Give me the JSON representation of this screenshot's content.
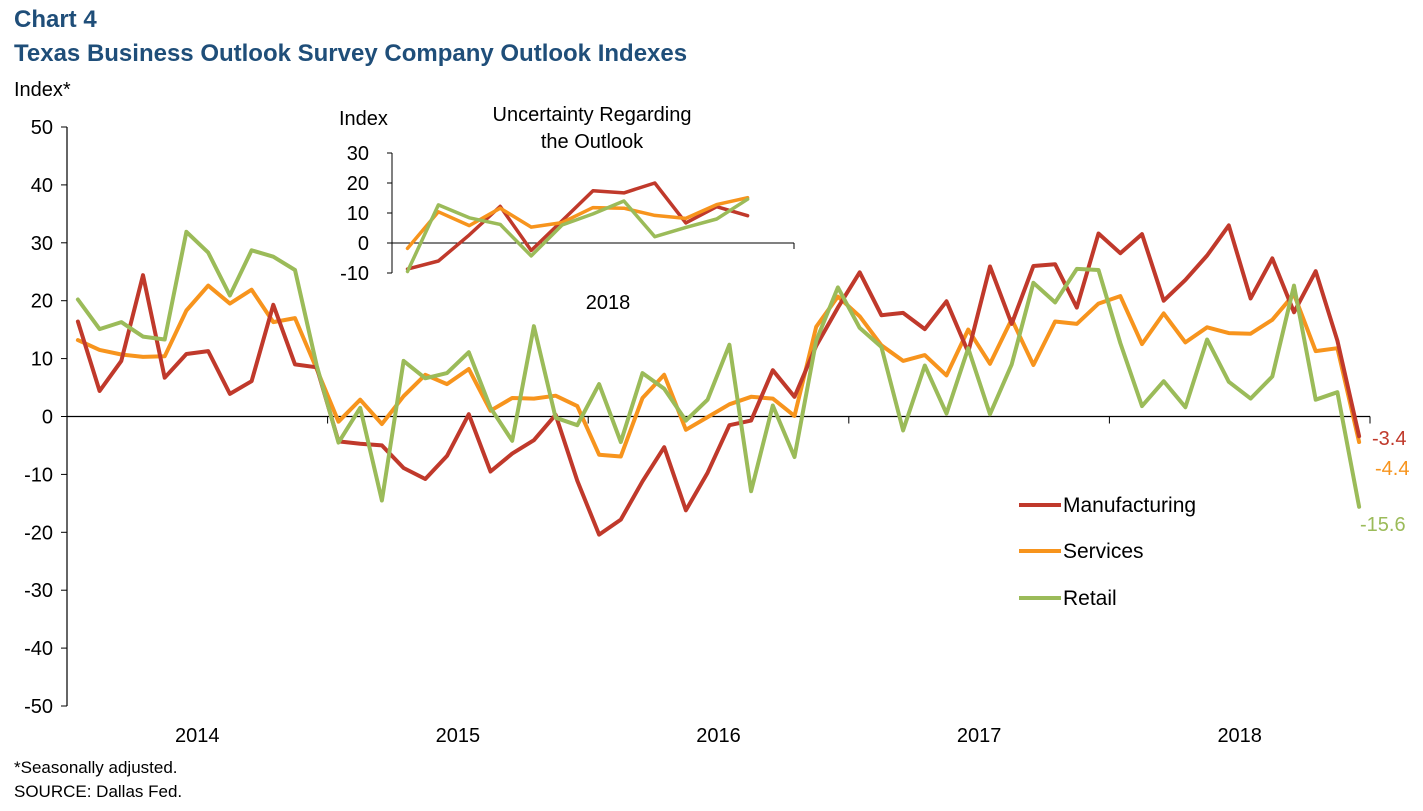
{
  "header": {
    "chart_number": "Chart 4",
    "title": "Texas Business Outlook Survey Company Outlook Indexes"
  },
  "footnotes": {
    "seasonal": "*Seasonally adjusted.",
    "source": "SOURCE: Dallas Fed."
  },
  "colors": {
    "manufacturing": "#c0392b",
    "services": "#f7941d",
    "retail": "#9bbb59",
    "axis": "#000000"
  },
  "chart_data": [
    {
      "id": "main",
      "type": "line",
      "title": "Texas Business Outlook Survey Company Outlook Indexes",
      "ylabel": "Index*",
      "ylim": [
        -50,
        50
      ],
      "yticks": [
        50,
        40,
        30,
        20,
        10,
        0,
        -10,
        -20,
        -30,
        -40,
        -50
      ],
      "x_start": 0,
      "x_end": 60,
      "x_ticks": [
        0,
        12,
        24,
        36,
        48,
        60
      ],
      "x_labels": [
        {
          "label": "2014",
          "x": 6
        },
        {
          "label": "2015",
          "x": 18
        },
        {
          "label": "2016",
          "x": 30
        },
        {
          "label": "2017",
          "x": 42
        },
        {
          "label": "2018",
          "x": 54
        }
      ],
      "legend_position": "bottom-right",
      "series": [
        {
          "name": "Manufacturing",
          "key": "manufacturing",
          "end_label": "-3.4",
          "values": [
            16.4,
            4.4,
            9.6,
            24.4,
            6.7,
            10.8,
            11.3,
            3.9,
            6.1,
            19.3,
            9.0,
            8.5,
            -4.3,
            -4.7,
            -5.0,
            -8.9,
            -10.8,
            -6.8,
            0.4,
            -9.5,
            -6.4,
            -4.1,
            0.3,
            -11.1,
            -20.4,
            -17.8,
            -11.2,
            -5.3,
            -16.2,
            -9.7,
            -1.5,
            -0.7,
            8.0,
            3.4,
            12.2,
            18.8,
            24.9,
            17.5,
            17.9,
            15.1,
            19.9,
            11.1,
            25.9,
            16.0,
            26.0,
            26.3,
            18.8,
            31.6,
            28.2,
            31.5,
            20.0,
            23.6,
            27.8,
            33.0,
            20.4,
            27.3,
            18.0,
            25.1,
            13.1,
            -3.4
          ]
        },
        {
          "name": "Services",
          "key": "services",
          "end_label": "-4.4",
          "values": [
            13.2,
            11.5,
            10.7,
            10.3,
            10.4,
            18.3,
            22.6,
            19.5,
            21.9,
            16.3,
            17.0,
            8.2,
            -0.9,
            2.9,
            -1.3,
            3.5,
            7.2,
            5.6,
            8.2,
            1.0,
            3.2,
            3.1,
            3.6,
            1.8,
            -6.6,
            -6.9,
            3.2,
            7.2,
            -2.3,
            -0.1,
            2.1,
            3.4,
            3.1,
            0.1,
            15.5,
            20.7,
            17.3,
            12.3,
            9.6,
            10.6,
            7.1,
            15.0,
            9.1,
            16.8,
            8.9,
            16.4,
            16.0,
            19.5,
            20.8,
            12.5,
            17.8,
            12.8,
            15.4,
            14.4,
            14.3,
            16.7,
            21.1,
            11.3,
            11.8,
            -4.4
          ]
        },
        {
          "name": "Retail",
          "key": "retail",
          "end_label": "-15.6",
          "values": [
            20.2,
            15.1,
            16.3,
            13.8,
            13.3,
            31.9,
            28.3,
            20.9,
            28.7,
            27.6,
            25.3,
            8.8,
            -4.5,
            1.5,
            -14.5,
            9.6,
            6.6,
            7.5,
            11.1,
            1.5,
            -4.2,
            15.6,
            -0.2,
            -1.5,
            5.6,
            -4.4,
            7.5,
            4.8,
            -0.7,
            2.9,
            12.4,
            -12.9,
            1.9,
            -7.0,
            13.1,
            22.3,
            15.3,
            12.0,
            -2.4,
            8.8,
            0.5,
            11.8,
            0.4,
            9.0,
            23.1,
            19.7,
            25.5,
            25.3,
            12.7,
            1.8,
            6.1,
            1.6,
            13.3,
            6.0,
            3.1,
            6.9,
            22.6,
            2.9,
            4.2,
            -15.6
          ]
        }
      ]
    },
    {
      "id": "inset",
      "type": "line",
      "title": "Uncertainty Regarding the Outlook",
      "title_lines": [
        "Uncertainty Regarding",
        "the Outlook"
      ],
      "ylabel": "Index",
      "xlabel": "2018",
      "ylim": [
        -10,
        30
      ],
      "yticks": [
        30,
        20,
        10,
        0,
        -10
      ],
      "x_start": 0,
      "x_end": 13,
      "x_ticks": [
        0,
        13
      ],
      "series": [
        {
          "name": "Manufacturing",
          "key": "manufacturing",
          "values": [
            -8.7,
            -6.0,
            2.7,
            12.2,
            -2.5,
            7.4,
            17.4,
            16.7,
            20.0,
            6.7,
            12.1,
            9.1
          ]
        },
        {
          "name": "Services",
          "key": "services",
          "values": [
            -1.8,
            10.4,
            5.8,
            11.6,
            5.3,
            6.8,
            11.8,
            11.6,
            9.2,
            8.2,
            12.8,
            15.1
          ]
        },
        {
          "name": "Retail",
          "key": "retail",
          "values": [
            -9.5,
            12.7,
            8.4,
            6.2,
            -4.3,
            6.0,
            9.7,
            14.0,
            2.1,
            5.2,
            8.0,
            14.6
          ]
        }
      ]
    }
  ]
}
